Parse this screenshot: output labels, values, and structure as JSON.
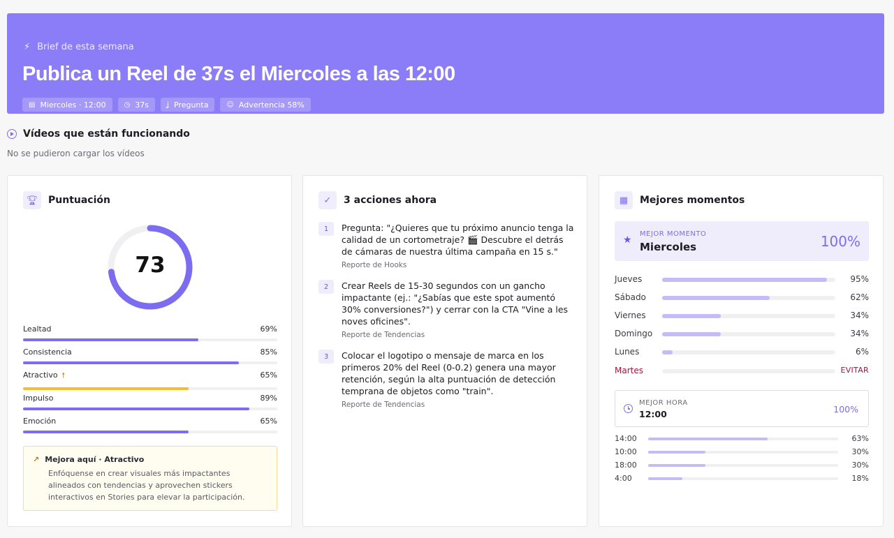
{
  "hero": {
    "eyebrow": "Brief de esta semana",
    "title": "Publica un Reel de 37s el Miercoles a las 12:00",
    "chips": [
      {
        "icon": "calendar-icon",
        "label": "Miercoles · 12:00"
      },
      {
        "icon": "timer-icon",
        "label": "37s"
      },
      {
        "icon": "hook-icon",
        "label": "Pregunta"
      },
      {
        "icon": "smiley-icon",
        "label": "Advertencia 58%"
      }
    ]
  },
  "videos": {
    "title": "Vídeos que están funcionando",
    "subtitle": "No se pudieron cargar los vídeos"
  },
  "score": {
    "title": "Puntuación",
    "value": "73",
    "progress": 0.73,
    "metrics": [
      {
        "label": "Lealtad",
        "value": "69%",
        "fraction": 0.69,
        "warn": false
      },
      {
        "label": "Consistencia",
        "value": "85%",
        "fraction": 0.85,
        "warn": false
      },
      {
        "label": "Atractivo",
        "value": "65%",
        "fraction": 0.65,
        "warn": true
      },
      {
        "label": "Impulso",
        "value": "89%",
        "fraction": 0.89,
        "warn": false
      },
      {
        "label": "Emoción",
        "value": "65%",
        "fraction": 0.65,
        "warn": false
      }
    ],
    "tip": {
      "title": "Mejora aquí · Atractivo",
      "body": "Enfóquense en crear visuales más impactantes alineados con tendencias y aprovechen stickers interactivos en Stories para elevar la participación."
    }
  },
  "actions": {
    "title": "3 acciones ahora",
    "items": [
      {
        "num": "1",
        "text": "Pregunta: \"¿Quieres que tu próximo anuncio tenga la calidad de un cortometraje? 🎬 Descubre el detrás de cámaras de nuestra última campaña en 15 s.\"",
        "source": "Reporte de Hooks"
      },
      {
        "num": "2",
        "text": "Crear Reels de 15-30 segundos con un gancho impactante (ej.: \"¿Sabías que este spot aumentó 30% conversiones?\") y cerrar con la CTA \"Vine a les noves oficines\".",
        "source": "Reporte de Tendencias"
      },
      {
        "num": "3",
        "text": "Colocar el logotipo o mensaje de marca en los primeros 20% del Reel (0-0.2) genera una mayor retención, según la alta puntuación de detección temprana de objetos como \"train\".",
        "source": "Reporte de Tendencias"
      }
    ]
  },
  "moments": {
    "title": "Mejores momentos",
    "best_label": "MEJOR MOMENTO",
    "best_day": "Miercoles",
    "best_pct": "100%",
    "days": [
      {
        "label": "Jueves",
        "value": "95%",
        "fraction": 0.95
      },
      {
        "label": "Sábado",
        "value": "62%",
        "fraction": 0.62
      },
      {
        "label": "Viernes",
        "value": "34%",
        "fraction": 0.34
      },
      {
        "label": "Domingo",
        "value": "34%",
        "fraction": 0.34
      },
      {
        "label": "Lunes",
        "value": "6%",
        "fraction": 0.06
      }
    ],
    "avoid": {
      "label": "Martes",
      "value": "EVITAR"
    },
    "hour_label": "MEJOR HORA",
    "hour_value": "12:00",
    "hour_pct": "100%",
    "hours": [
      {
        "label": "14:00",
        "value": "63%",
        "fraction": 0.63
      },
      {
        "label": "10:00",
        "value": "30%",
        "fraction": 0.3
      },
      {
        "label": "18:00",
        "value": "30%",
        "fraction": 0.3
      },
      {
        "label": "4:00",
        "value": "18%",
        "fraction": 0.18
      }
    ]
  }
}
